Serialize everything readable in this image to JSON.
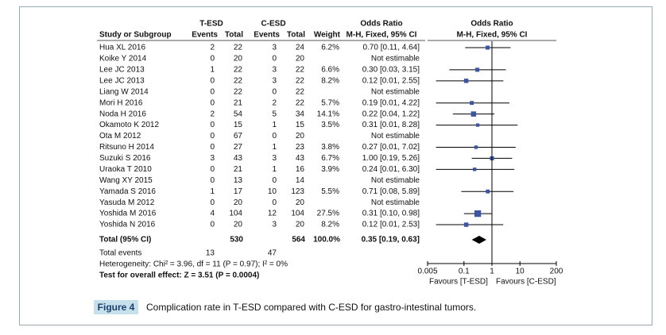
{
  "chart_data": {
    "type": "forest",
    "group_headers": [
      "T-ESD",
      "C-ESD"
    ],
    "columns": [
      "Study or Subgroup",
      "Events",
      "Total",
      "Events",
      "Total",
      "Weight"
    ],
    "or_header": [
      "Odds Ratio",
      "M-H, Fixed, 95% CI"
    ],
    "plot_header": [
      "Odds Ratio",
      "M-H, Fixed, 95% CI"
    ],
    "studies": [
      "Hua XL 2016",
      "Koike Y 2014",
      "Lee JC 2013",
      "Lee JC 2013",
      "Liang W 2014",
      "Mori H 2016",
      "Noda H 2016",
      "Okamoto K 2012",
      "Ota M 2012",
      "Ritsuno H 2014",
      "Suzuki S 2016",
      "Uraoka T 2010",
      "Wang XY 2015",
      "Yamada S 2016",
      "Yasuda M 2012",
      "Yoshida M 2016",
      "Yoshida N 2016"
    ],
    "t_events": [
      2,
      0,
      1,
      0,
      0,
      0,
      2,
      0,
      0,
      0,
      3,
      0,
      0,
      1,
      0,
      4,
      0
    ],
    "t_total": [
      22,
      20,
      22,
      22,
      22,
      21,
      54,
      15,
      67,
      27,
      43,
      21,
      13,
      17,
      20,
      104,
      20
    ],
    "c_events": [
      3,
      0,
      3,
      3,
      0,
      2,
      5,
      1,
      0,
      1,
      3,
      1,
      0,
      10,
      0,
      12,
      3
    ],
    "c_total": [
      24,
      20,
      22,
      22,
      22,
      22,
      34,
      15,
      20,
      23,
      43,
      16,
      14,
      123,
      20,
      104,
      20
    ],
    "weights": [
      6.2,
      null,
      6.6,
      8.2,
      null,
      5.7,
      14.1,
      3.5,
      null,
      3.8,
      6.7,
      3.9,
      null,
      5.5,
      null,
      27.5,
      8.2
    ],
    "weight_labels": [
      "6.2%",
      null,
      "6.6%",
      "8.2%",
      null,
      "5.7%",
      "14.1%",
      "3.5%",
      null,
      "3.8%",
      "6.7%",
      "3.9%",
      null,
      "5.5%",
      null,
      "27.5%",
      "8.2%"
    ],
    "values": [
      0.7,
      null,
      0.3,
      0.12,
      null,
      0.19,
      0.22,
      0.31,
      null,
      0.27,
      1,
      0.24,
      null,
      0.71,
      null,
      0.31,
      0.12
    ],
    "ci_low": [
      0.11,
      null,
      0.03,
      0.01,
      null,
      0.01,
      0.04,
      0.01,
      null,
      0.01,
      0.19,
      0.01,
      null,
      0.08,
      null,
      0.1,
      0.01
    ],
    "ci_high": [
      4.64,
      null,
      3.15,
      2.55,
      null,
      4.22,
      1.22,
      8.28,
      null,
      7.02,
      5.26,
      6.3,
      null,
      5.89,
      null,
      0.98,
      2.53
    ],
    "value_labels": [
      "0.70 [0.11, 4.64]",
      "Not estimable",
      "0.30 [0.03, 3.15]",
      "0.12 [0.01, 2.55]",
      "Not estimable",
      "0.19 [0.01, 4.22]",
      "0.22 [0.04, 1.22]",
      "0.31 [0.01, 8.28]",
      "Not estimable",
      "0.27 [0.01, 7.02]",
      "1.00 [0.19, 5.26]",
      "0.24 [0.01, 6.30]",
      "Not estimable",
      "0.71 [0.08, 5.89]",
      "Not estimable",
      "0.31 [0.10, 0.98]",
      "0.12 [0.01, 2.53]"
    ],
    "total": {
      "label": "Total (95% CI)",
      "t_total": 530,
      "c_total": 564,
      "weight": 100,
      "weight_label": "100.0%",
      "value": 0.35,
      "ci_low": 0.19,
      "ci_high": 0.63,
      "value_label": "0.35 [0.19, 0.63]"
    },
    "total_events": {
      "label": "Total events",
      "t": 13,
      "c": 47
    },
    "heterogeneity": "Heterogeneity: Chi² = 3.96, df = 11 (P = 0.97); I² = 0%",
    "overall_effect": "Test for overall effect: Z = 3.51 (P = 0.0004)",
    "log_scale": true,
    "xlim": [
      0.005,
      200
    ],
    "xticks": [
      0.005,
      0.1,
      1,
      10,
      200
    ],
    "favours": [
      "Favours [T-ESD]",
      "Favours [C-ESD]"
    ],
    "marker_color": "#3a55a4"
  },
  "caption": {
    "label": "Figure 4",
    "text": "Complication rate in T-ESD compared with C-ESD for gastro-intestinal tumors."
  }
}
